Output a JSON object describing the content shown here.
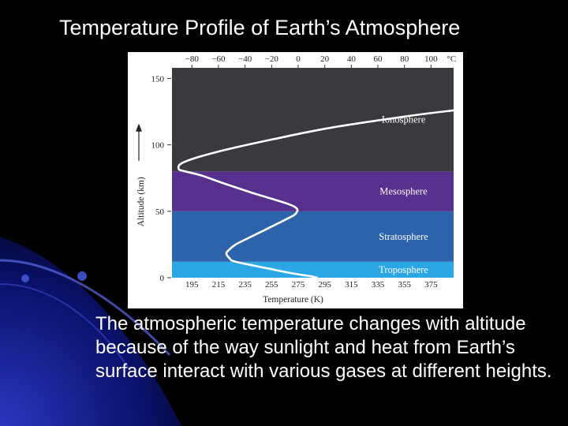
{
  "slide": {
    "title": "Temperature Profile of Earth’s Atmosphere",
    "caption": "The atmospheric temperature changes with altitude because of the way sunlight and heat from Earth’s surface interact with various gases at different heights."
  },
  "chart_data": {
    "type": "line",
    "xlabel": "Temperature (K)",
    "ylabel": "Altitude (km)",
    "x_ticks_k": [
      195,
      215,
      235,
      255,
      275,
      295,
      315,
      335,
      355,
      375
    ],
    "x_ticks_c": [
      "−80",
      "−60",
      "−40",
      "−20",
      "0",
      "20",
      "40",
      "60",
      "80",
      "100"
    ],
    "x_unit_top": "°C",
    "y_ticks": [
      0,
      50,
      100,
      150
    ],
    "xlim": [
      180,
      392
    ],
    "ylim": [
      0,
      158
    ],
    "grid": false,
    "layers": [
      {
        "name": "Troposphere",
        "from_km": 0,
        "to_km": 12,
        "color": "#2aa7e4"
      },
      {
        "name": "Stratosphere",
        "from_km": 12,
        "to_km": 50,
        "color": "#2d63aa"
      },
      {
        "name": "Mesosphere",
        "from_km": 50,
        "to_km": 80,
        "color": "#56308c"
      },
      {
        "name": "Ionosphere",
        "from_km": 80,
        "to_km": 158,
        "color": "#3a3a3e"
      }
    ],
    "series": [
      {
        "x": [
          289,
          285,
          272,
          252,
          228,
          223,
          221,
          222,
          228,
          242,
          258,
          268,
          273,
          274,
          266,
          240,
          219,
          202,
          190,
          185,
          189,
          215,
          255,
          300,
          360,
          392
        ],
        "y": [
          0,
          1,
          3,
          7,
          12,
          15,
          18,
          20,
          25,
          32,
          40,
          45,
          48,
          52,
          56,
          64,
          71,
          77,
          80,
          82,
          87,
          95,
          104,
          113,
          122,
          126
        ]
      }
    ]
  }
}
